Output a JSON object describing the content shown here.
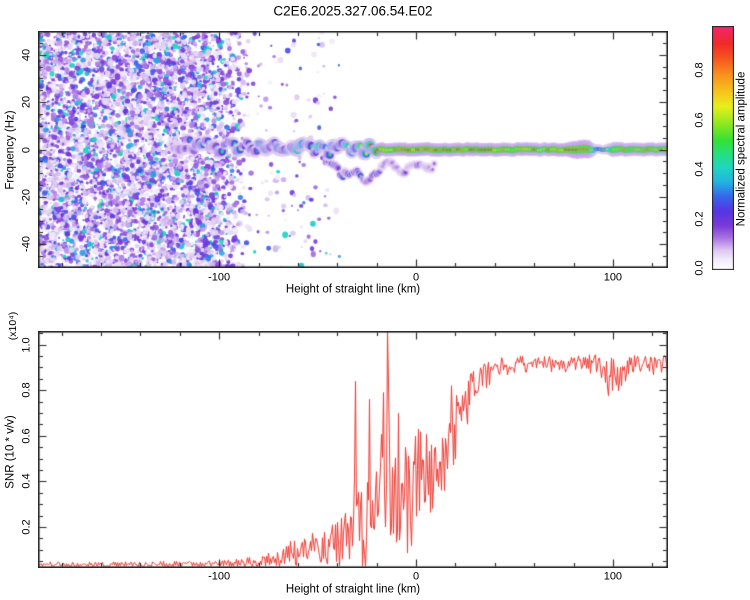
{
  "figure": {
    "background": "#ffffff",
    "frame_color": "#222222"
  },
  "chart_data": [
    {
      "type": "heatmap",
      "title": "C2E6.2025.327.06.54.E02",
      "xlabel": "Height of straight line (km)",
      "ylabel": "Frequency (Hz)",
      "xlim": [
        -192,
        128
      ],
      "ylim": [
        -50,
        50
      ],
      "xticks": [
        -100,
        0,
        100
      ],
      "xtick_minor_step": 20,
      "yticks": [
        40,
        20,
        0,
        -20,
        -40
      ],
      "ytick_minor_step": 5,
      "grid": false,
      "colorbar": {
        "label": "Normalized spectral amplitude",
        "ticks": [
          0.0,
          0.2,
          0.4,
          0.6,
          0.8
        ],
        "tick_labels": [
          "0.0",
          "0.2",
          "0.4",
          "0.6",
          "0.8"
        ],
        "range": [
          0,
          1
        ]
      },
      "colormap_stops": [
        [
          0.0,
          "#ffffff"
        ],
        [
          0.04,
          "#f3ecfb"
        ],
        [
          0.08,
          "#dcc6f2"
        ],
        [
          0.13,
          "#a873e2"
        ],
        [
          0.18,
          "#7a3ad8"
        ],
        [
          0.24,
          "#5536e2"
        ],
        [
          0.3,
          "#3766ec"
        ],
        [
          0.36,
          "#22b4e0"
        ],
        [
          0.42,
          "#1fd6c0"
        ],
        [
          0.48,
          "#25e07a"
        ],
        [
          0.53,
          "#33e135"
        ],
        [
          0.6,
          "#8fe820"
        ],
        [
          0.67,
          "#e6ef1b"
        ],
        [
          0.73,
          "#f7c51d"
        ],
        [
          0.8,
          "#f9921e"
        ],
        [
          0.87,
          "#f65321"
        ],
        [
          0.93,
          "#f12a28"
        ],
        [
          1.0,
          "#f2256e"
        ]
      ],
      "noise_region": {
        "x_dense_end": -108,
        "x_fade_end": -82,
        "x_sparse_end": -38,
        "sparse_density": 0.045,
        "blob_count": 9000,
        "seed": 1337
      },
      "trace_main": {
        "x": [
          -124,
          -120,
          -116,
          -112,
          -108,
          -104,
          -100,
          -96,
          -92,
          -88,
          -84,
          -80,
          -76,
          -72,
          -68,
          -64,
          -60,
          -56,
          -52,
          -48,
          -44,
          -40,
          -36,
          -32,
          -28,
          -24,
          -20,
          -16,
          -12,
          -8,
          -4,
          0,
          8,
          16,
          24,
          32,
          40,
          48,
          56,
          64,
          70,
          76,
          80,
          84,
          88,
          92,
          96,
          100,
          106,
          112,
          118,
          124,
          128
        ],
        "f": [
          1.5,
          2,
          2.5,
          1,
          3,
          2,
          0.5,
          2,
          1,
          2.5,
          0.5,
          1.5,
          0,
          2,
          0.5,
          1.5,
          -0.5,
          1,
          -1,
          0.5,
          -0.5,
          0,
          1,
          -0.5,
          0.5,
          0,
          0,
          0,
          0,
          0,
          0,
          0,
          0,
          0,
          0,
          0,
          0,
          0,
          0,
          0,
          0,
          0,
          0,
          0,
          0,
          0,
          0,
          0,
          0,
          0,
          0,
          0,
          0
        ],
        "a": [
          0.22,
          0.3,
          0.38,
          0.42,
          0.5,
          0.45,
          0.55,
          0.5,
          0.55,
          0.5,
          0.6,
          0.55,
          0.6,
          0.55,
          0.65,
          0.6,
          0.7,
          0.65,
          0.7,
          0.75,
          0.7,
          0.8,
          0.75,
          0.8,
          0.85,
          0.9,
          0.95,
          1,
          0.95,
          1,
          1,
          1,
          1,
          0.95,
          1,
          0.95,
          1,
          0.95,
          1,
          0.9,
          1,
          1,
          1,
          1,
          1,
          0.5,
          0.55,
          0.9,
          0.95,
          0.9,
          0.95,
          0.9,
          0.95
        ],
        "w": [
          1,
          1,
          1,
          1,
          1,
          1,
          1,
          1,
          1,
          1,
          1,
          1,
          1,
          1,
          1,
          1,
          1,
          1,
          1,
          1,
          1,
          1,
          1,
          1,
          1,
          1,
          1,
          1,
          1,
          1,
          1,
          1,
          1,
          1,
          1,
          1,
          1,
          1,
          1,
          1,
          1,
          1,
          1.3,
          1.4,
          1.35,
          0.7,
          0.7,
          1.1,
          1,
          1,
          1,
          1,
          1
        ]
      },
      "trace_branch": {
        "x": [
          -46,
          -42,
          -38,
          -34,
          -30,
          -26,
          -22,
          -18,
          -14,
          -10,
          -6,
          -2,
          2,
          6,
          10
        ],
        "f": [
          -4,
          -7,
          -10,
          -12,
          -9,
          -13,
          -11,
          -8,
          -6,
          -7,
          -9,
          -7,
          -6,
          -8,
          -7
        ],
        "a": [
          0.3,
          0.42,
          0.38,
          0.45,
          0.4,
          0.45,
          0.35,
          0.3,
          0.28,
          0.3,
          0.28,
          0.25,
          0.28,
          0.22,
          0.18
        ]
      }
    },
    {
      "type": "line",
      "title": "",
      "xlabel": "Height of straight line (km)",
      "ylabel": "SNR (10 * v/v)",
      "ylabel_scale": "(x10⁴)",
      "xlim": [
        -192,
        128
      ],
      "ylim": [
        0.02,
        1.06
      ],
      "xticks": [
        -100,
        0,
        100
      ],
      "xtick_minor_step": 20,
      "yticks": [
        0.2,
        0.4,
        0.6,
        0.8,
        1.0
      ],
      "ytick_labels": [
        "0.2",
        "0.4",
        "0.6",
        "0.8",
        "1.0"
      ],
      "ytick_minor_step": 0.05,
      "grid": false,
      "color": "#ee3a32",
      "series": [
        {
          "name": "SNR",
          "x": [
            -192,
            -160,
            -130,
            -110,
            -95,
            -88,
            -82,
            -78,
            -74,
            -70,
            -66,
            -62,
            -58,
            -54,
            -50,
            -46,
            -42,
            -38,
            -35,
            -33,
            -31,
            -29,
            -27,
            -25,
            -23,
            -21,
            -19,
            -17,
            -15.5,
            -14.5,
            -13.5,
            -12,
            -10,
            -8,
            -6,
            -4,
            -2,
            0,
            2,
            4,
            6,
            8,
            10,
            12,
            14,
            16,
            18,
            20,
            22,
            24,
            26,
            28,
            30,
            33,
            36,
            40,
            45,
            50,
            60,
            70,
            80,
            86,
            92,
            96,
            100,
            104,
            108,
            112,
            118,
            124,
            128
          ],
          "base": [
            0.035,
            0.035,
            0.036,
            0.038,
            0.04,
            0.045,
            0.05,
            0.055,
            0.06,
            0.07,
            0.08,
            0.09,
            0.1,
            0.11,
            0.11,
            0.12,
            0.13,
            0.14,
            0.16,
            0.18,
            0.5,
            0.2,
            0.22,
            0.4,
            0.24,
            0.28,
            0.3,
            0.5,
            0.25,
            1.02,
            0.3,
            0.32,
            0.34,
            0.36,
            0.35,
            0.38,
            0.4,
            0.42,
            0.44,
            0.46,
            0.48,
            0.5,
            0.52,
            0.5,
            0.55,
            0.58,
            0.62,
            0.66,
            0.7,
            0.74,
            0.77,
            0.8,
            0.83,
            0.86,
            0.88,
            0.9,
            0.91,
            0.92,
            0.92,
            0.92,
            0.92,
            0.93,
            0.9,
            0.88,
            0.86,
            0.87,
            0.9,
            0.92,
            0.92,
            0.92,
            0.91
          ],
          "noise": [
            0.012,
            0.012,
            0.013,
            0.015,
            0.016,
            0.02,
            0.025,
            0.03,
            0.035,
            0.04,
            0.05,
            0.06,
            0.065,
            0.07,
            0.08,
            0.09,
            0.1,
            0.11,
            0.12,
            0.13,
            0.3,
            0.14,
            0.15,
            0.3,
            0.16,
            0.17,
            0.18,
            0.25,
            0.18,
            0.04,
            0.19,
            0.2,
            0.21,
            0.22,
            0.22,
            0.22,
            0.21,
            0.2,
            0.2,
            0.19,
            0.18,
            0.17,
            0.16,
            0.16,
            0.15,
            0.14,
            0.13,
            0.12,
            0.11,
            0.1,
            0.09,
            0.08,
            0.07,
            0.06,
            0.05,
            0.04,
            0.035,
            0.032,
            0.03,
            0.03,
            0.032,
            0.04,
            0.06,
            0.07,
            0.08,
            0.075,
            0.05,
            0.04,
            0.04,
            0.04,
            0.042
          ],
          "spikes": [
            [
              -31,
              0.84
            ],
            [
              -24,
              0.76
            ],
            [
              -17,
              0.79
            ],
            [
              -14.5,
              1.06
            ],
            [
              -9,
              0.7
            ],
            [
              18,
              0.82
            ]
          ]
        }
      ]
    }
  ]
}
